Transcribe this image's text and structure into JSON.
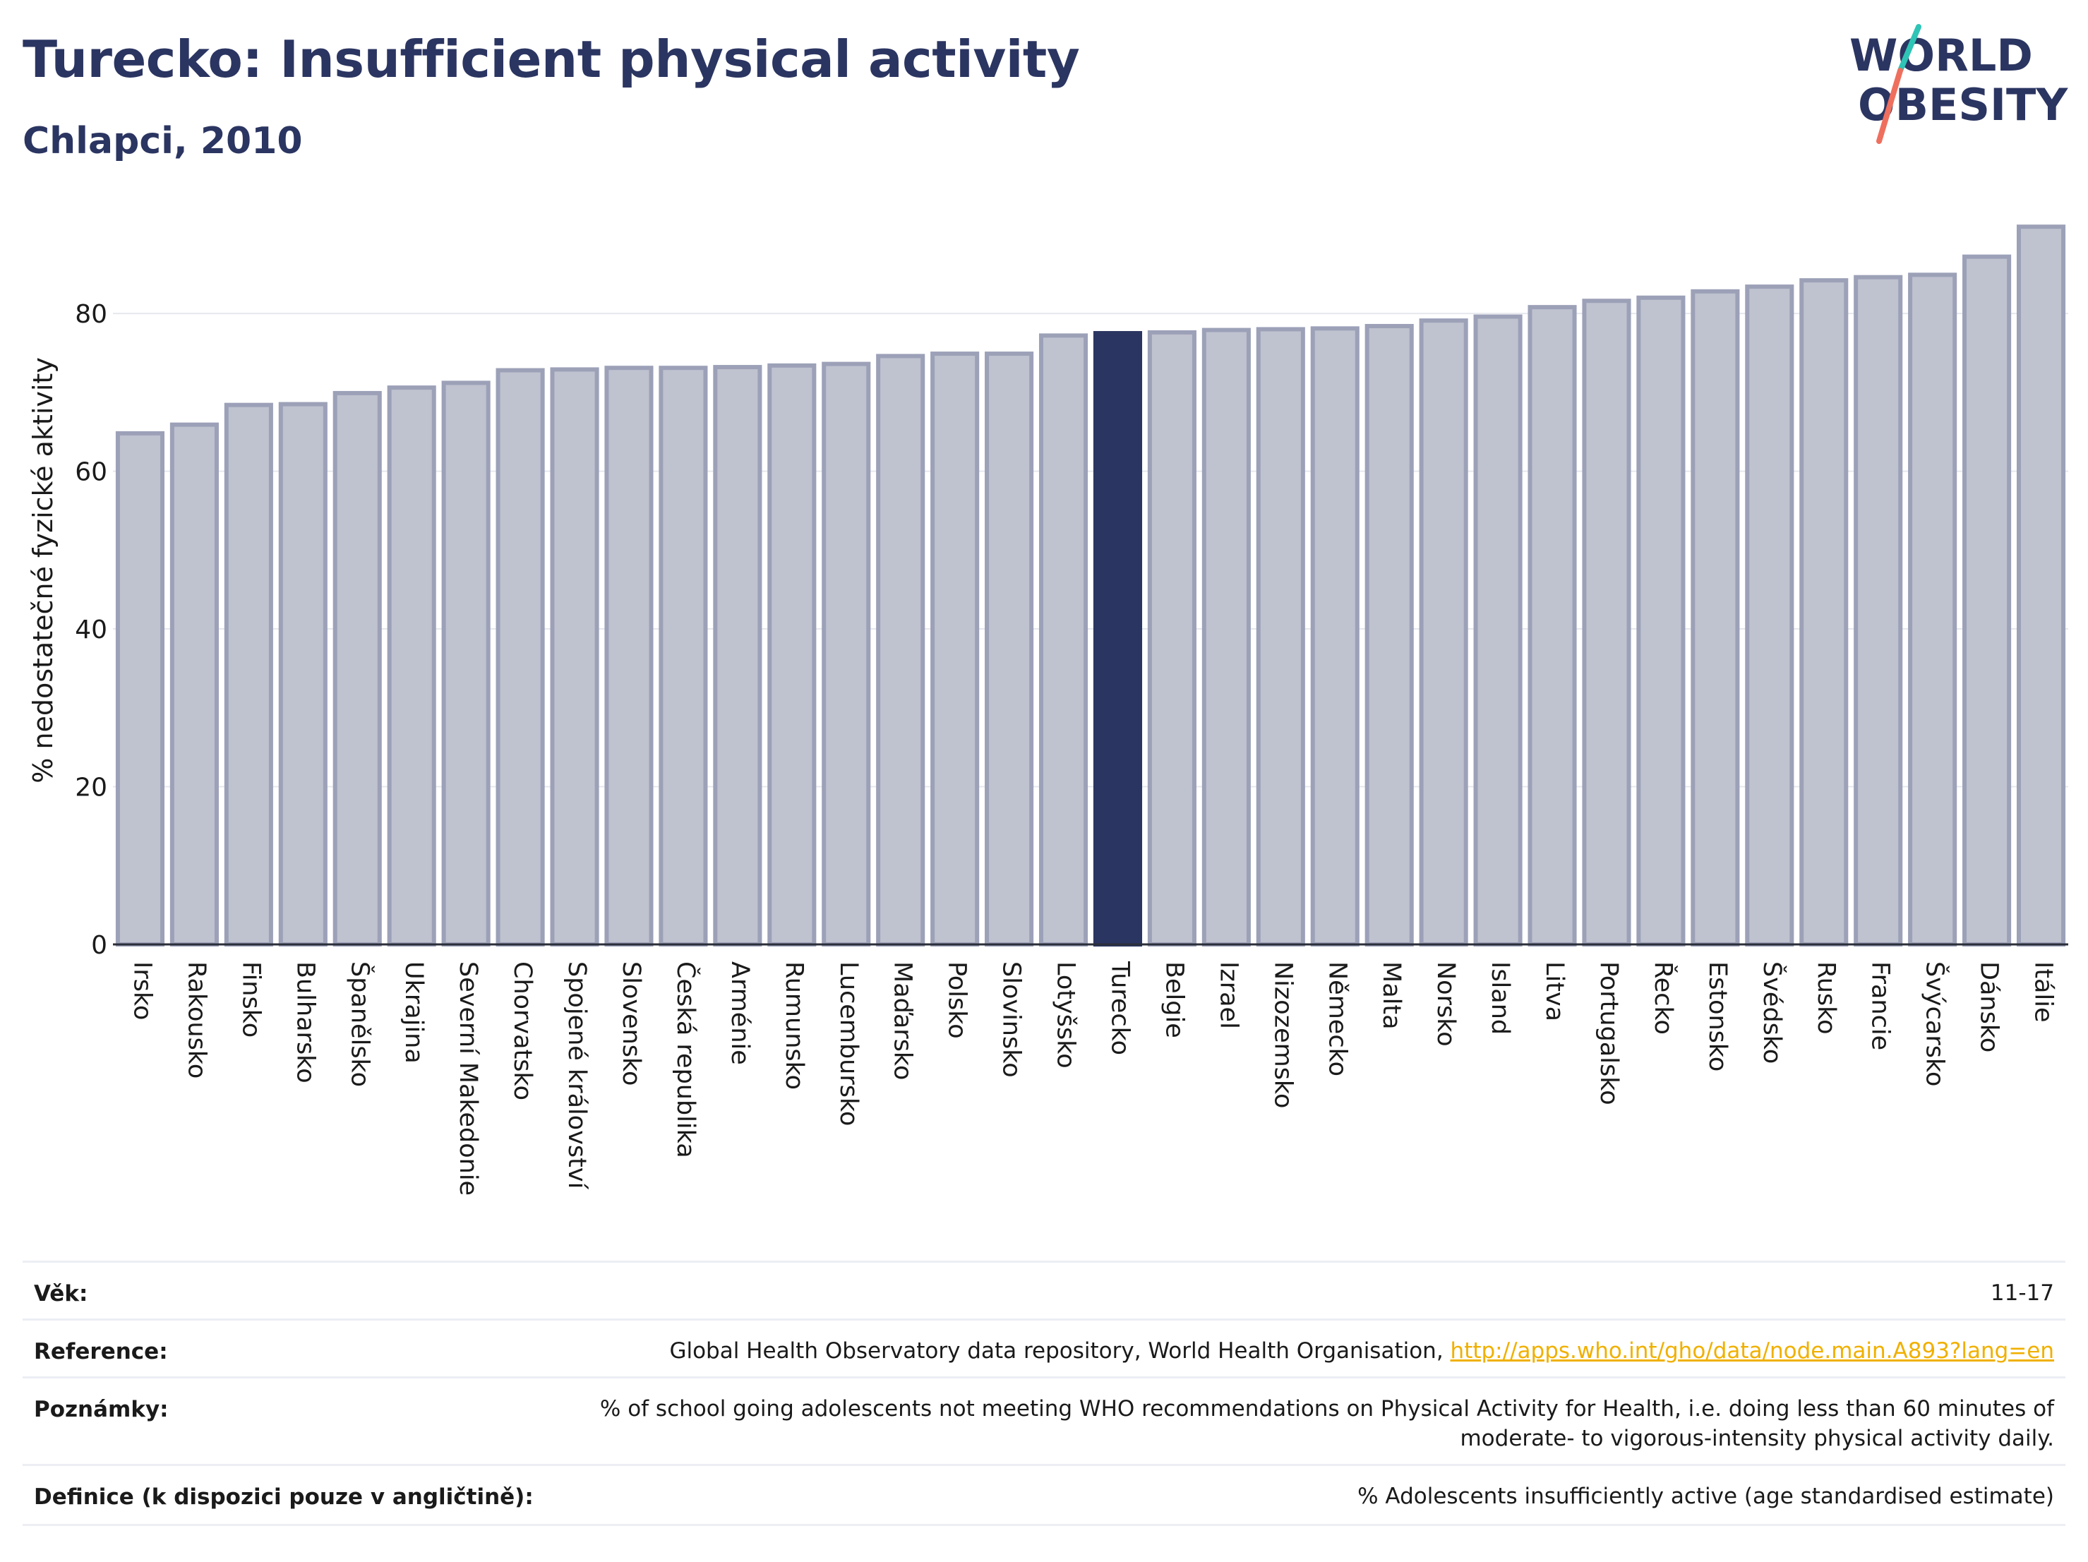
{
  "header": {
    "title": "Turecko: Insufficient physical activity",
    "subtitle": "Chlapci, 2010",
    "logo_line1": "WORLD",
    "logo_line2": "OBESITY"
  },
  "colors": {
    "title": "#2b3561",
    "bar_default": "#bfc2cf",
    "bar_default_stroke": "#9ca1b8",
    "bar_highlight": "#2b3561",
    "logo_teal": "#2ec4b6",
    "logo_coral": "#ef6f5e",
    "link": "#f0b000"
  },
  "chart_data": {
    "type": "bar",
    "ylabel": "% nedostatečné fyzické aktivity",
    "ylim": [
      0,
      92
    ],
    "yticks": [
      0,
      20,
      40,
      60,
      80
    ],
    "grid": true,
    "highlight": "Turecko",
    "categories": [
      "Irsko",
      "Rakousko",
      "Finsko",
      "Bulharsko",
      "Španělsko",
      "Ukrajina",
      "Severní Makedonie",
      "Chorvatsko",
      "Spojené království",
      "Slovensko",
      "Česká republika",
      "Arménie",
      "Rumunsko",
      "Lucembursko",
      "Maďarsko",
      "Polsko",
      "Slovinsko",
      "Lotyšsko",
      "Turecko",
      "Belgie",
      "Izrael",
      "Nizozemsko",
      "Německo",
      "Malta",
      "Norsko",
      "Island",
      "Litva",
      "Portugalsko",
      "Řecko",
      "Estonsko",
      "Švédsko",
      "Rusko",
      "Francie",
      "Švýcarsko",
      "Dánsko",
      "Itálie"
    ],
    "values": [
      64.8,
      65.9,
      68.4,
      68.5,
      69.9,
      70.6,
      71.2,
      72.8,
      72.9,
      73.1,
      73.1,
      73.2,
      73.4,
      73.6,
      74.6,
      74.9,
      74.9,
      77.2,
      77.5,
      77.6,
      77.9,
      78.0,
      78.1,
      78.4,
      79.1,
      79.6,
      80.8,
      81.6,
      82.0,
      82.8,
      83.4,
      84.2,
      84.6,
      84.9,
      87.2,
      91.0
    ]
  },
  "info": {
    "age_label": "Věk:",
    "age_value": "11-17",
    "reference_label": "Reference:",
    "reference_text": "Global Health Observatory data repository, World Health Organisation, ",
    "reference_link": "http://apps.who.int/gho/data/node.main.A893?lang=en",
    "notes_label": "Poznámky:",
    "notes_line1": "% of school going adolescents not meeting WHO recommendations on Physical Activity for Health, i.e. doing less than 60 minutes of",
    "notes_line2": "moderate- to vigorous-intensity physical activity daily.",
    "definition_label": "Definice (k dispozici pouze v angličtině):",
    "definition_value": "% Adolescents insufficiently active (age standardised estimate)"
  }
}
